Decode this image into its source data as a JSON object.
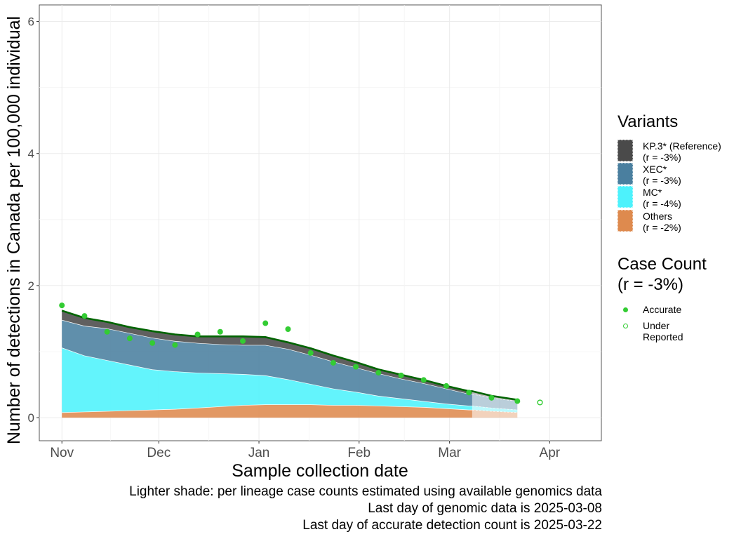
{
  "chart_data": {
    "type": "area",
    "ylabel": "Number of detections in Canada per 100,000 individual",
    "xlabel": "Sample collection date",
    "ylim": [
      -0.35,
      6.25
    ],
    "xlim": [
      "2024-10-25",
      "2025-04-17"
    ],
    "y_ticks": [
      0,
      2,
      4,
      6
    ],
    "x_ticks": [
      {
        "label": "Nov",
        "date": "2024-11-01"
      },
      {
        "label": "Dec",
        "date": "2024-12-01"
      },
      {
        "label": "Jan",
        "date": "2025-01-01"
      },
      {
        "label": "Feb",
        "date": "2025-02-01"
      },
      {
        "label": "Mar",
        "date": "2025-03-01"
      },
      {
        "label": "Apr",
        "date": "2025-04-01"
      }
    ],
    "grid": true,
    "legend_placement": "right",
    "x": [
      "2024-11-01",
      "2024-11-08",
      "2024-11-15",
      "2024-11-22",
      "2024-11-29",
      "2024-12-06",
      "2024-12-13",
      "2024-12-20",
      "2024-12-27",
      "2025-01-03",
      "2025-01-10",
      "2025-01-17",
      "2025-01-24",
      "2025-01-31",
      "2025-02-07",
      "2025-02-14",
      "2025-02-21",
      "2025-02-28",
      "2025-03-07",
      "2025-03-08",
      "2025-03-14",
      "2025-03-22"
    ],
    "series": [
      {
        "name": "Others",
        "values": [
          0.08,
          0.09,
          0.1,
          0.11,
          0.12,
          0.13,
          0.15,
          0.17,
          0.19,
          0.2,
          0.2,
          0.2,
          0.19,
          0.19,
          0.18,
          0.17,
          0.16,
          0.14,
          0.12,
          0.12,
          0.1,
          0.08
        ]
      },
      {
        "name": "MC*",
        "values": [
          0.98,
          0.85,
          0.77,
          0.69,
          0.61,
          0.57,
          0.53,
          0.5,
          0.47,
          0.44,
          0.38,
          0.31,
          0.25,
          0.2,
          0.15,
          0.12,
          0.09,
          0.07,
          0.06,
          0.06,
          0.05,
          0.04
        ]
      },
      {
        "name": "XEC*",
        "values": [
          0.42,
          0.45,
          0.48,
          0.48,
          0.48,
          0.46,
          0.45,
          0.44,
          0.44,
          0.46,
          0.46,
          0.44,
          0.41,
          0.37,
          0.34,
          0.3,
          0.27,
          0.23,
          0.18,
          0.18,
          0.15,
          0.13
        ]
      },
      {
        "name": "KP.3* (Reference)",
        "values": [
          0.14,
          0.12,
          0.1,
          0.09,
          0.1,
          0.1,
          0.1,
          0.12,
          0.13,
          0.12,
          0.1,
          0.1,
          0.09,
          0.08,
          0.06,
          0.06,
          0.05,
          0.04,
          0.04,
          0.04,
          0.03,
          0.02
        ]
      }
    ],
    "total_curve": [
      1.62,
      1.51,
      1.45,
      1.37,
      1.31,
      1.26,
      1.23,
      1.23,
      1.23,
      1.22,
      1.14,
      1.05,
      0.94,
      0.84,
      0.73,
      0.65,
      0.57,
      0.48,
      0.4,
      0.4,
      0.33,
      0.27
    ],
    "genomic_data_end": "2025-03-08",
    "points_accurate": [
      {
        "x": "2024-11-01",
        "y": 1.7
      },
      {
        "x": "2024-11-08",
        "y": 1.54
      },
      {
        "x": "2024-11-15",
        "y": 1.3
      },
      {
        "x": "2024-11-22",
        "y": 1.2
      },
      {
        "x": "2024-11-29",
        "y": 1.13
      },
      {
        "x": "2024-12-06",
        "y": 1.1
      },
      {
        "x": "2024-12-13",
        "y": 1.26
      },
      {
        "x": "2024-12-20",
        "y": 1.3
      },
      {
        "x": "2024-12-27",
        "y": 1.16
      },
      {
        "x": "2025-01-03",
        "y": 1.43
      },
      {
        "x": "2025-01-10",
        "y": 1.34
      },
      {
        "x": "2025-01-17",
        "y": 0.98
      },
      {
        "x": "2025-01-24",
        "y": 0.83
      },
      {
        "x": "2025-01-31",
        "y": 0.77
      },
      {
        "x": "2025-02-07",
        "y": 0.68
      },
      {
        "x": "2025-02-14",
        "y": 0.64
      },
      {
        "x": "2025-02-21",
        "y": 0.57
      },
      {
        "x": "2025-02-28",
        "y": 0.48
      },
      {
        "x": "2025-03-07",
        "y": 0.38
      },
      {
        "x": "2025-03-14",
        "y": 0.3
      },
      {
        "x": "2025-03-22",
        "y": 0.25
      }
    ],
    "points_under_reported": [
      {
        "x": "2025-03-29",
        "y": 0.23
      }
    ]
  },
  "legend": {
    "title": "Variants",
    "items": [
      {
        "label": "KP.3* (Reference)",
        "r": "(r = -3%)",
        "color": "#4a4a4a"
      },
      {
        "label": "XEC*",
        "r": "(r = -3%)",
        "color": "#4a7f9f"
      },
      {
        "label": "MC*",
        "r": "(r = -4%)",
        "color": "#4df2fc"
      },
      {
        "label": "Others",
        "r": "(r = -2%)",
        "color": "#de8a4e"
      }
    ]
  },
  "case_legend": {
    "title": "Case Count",
    "subtitle": "(r = -3%)",
    "accurate": "Accurate",
    "under": "Under Reported",
    "color": "#33cc33",
    "curve_color": "#006400"
  },
  "caption": {
    "line1": "Lighter shade: per lineage case counts estimated using available genomics data",
    "line2": "Last day of genomic data is 2025-03-08",
    "line3": "Last day of accurate detection count is 2025-03-22"
  }
}
